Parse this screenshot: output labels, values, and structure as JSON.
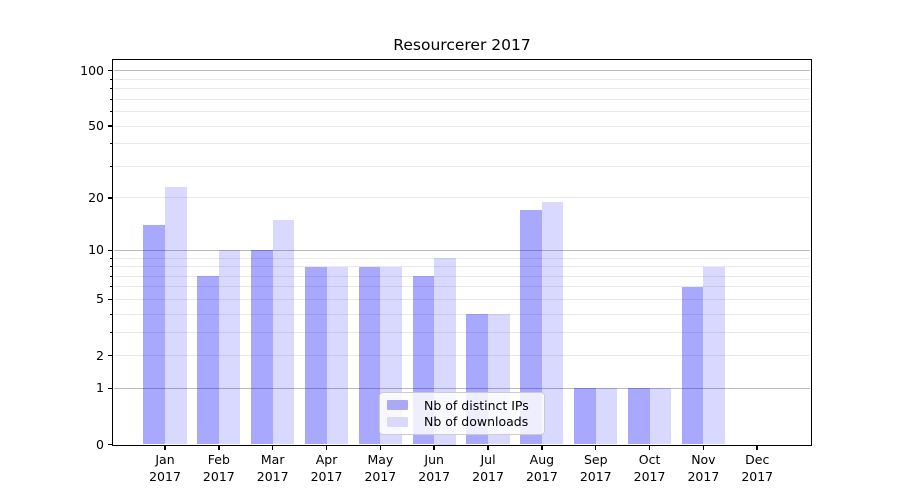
{
  "chart_data": {
    "type": "bar",
    "title": "Resourcerer 2017",
    "categories": [
      "Jan",
      "Feb",
      "Mar",
      "Apr",
      "May",
      "Jun",
      "Jul",
      "Aug",
      "Sep",
      "Oct",
      "Nov",
      "Dec"
    ],
    "category_year_label": "2017",
    "series": [
      {
        "name": "Nb of distinct IPs",
        "color_hex": "#a9a9f6",
        "color_rgba": "rgba(0,0,255,0.34)",
        "values": [
          14,
          7,
          10,
          8,
          8,
          7,
          4,
          17,
          1,
          1,
          6,
          0
        ]
      },
      {
        "name": "Nb of downloads",
        "color_hex": "#d9d9fb",
        "color_rgba": "rgba(0,0,255,0.15)",
        "values": [
          23,
          10,
          15,
          8,
          8,
          9,
          4,
          19,
          1,
          1,
          8,
          0
        ]
      }
    ],
    "yscale": "log10(value+1)",
    "ylim": [
      0,
      112
    ],
    "y_ticks": [
      {
        "label": "100",
        "value": 100
      },
      {
        "label": "50",
        "value": 50
      },
      {
        "label": "20",
        "value": 20
      },
      {
        "label": "10",
        "value": 10
      },
      {
        "label": "5",
        "value": 5
      },
      {
        "label": "2",
        "value": 2
      },
      {
        "label": "1",
        "value": 1
      },
      {
        "label": "0",
        "value": 0
      }
    ],
    "y_major_gridlines": [
      1,
      10,
      100
    ],
    "y_minor_gridlines": [
      2,
      3,
      4,
      5,
      6,
      7,
      8,
      9,
      20,
      30,
      40,
      50,
      60,
      70,
      80,
      90
    ],
    "grid": {
      "major_color": "#bbbbbb",
      "minor_color": "#e9e9e9"
    },
    "legend": {
      "position": "lower-center"
    }
  }
}
